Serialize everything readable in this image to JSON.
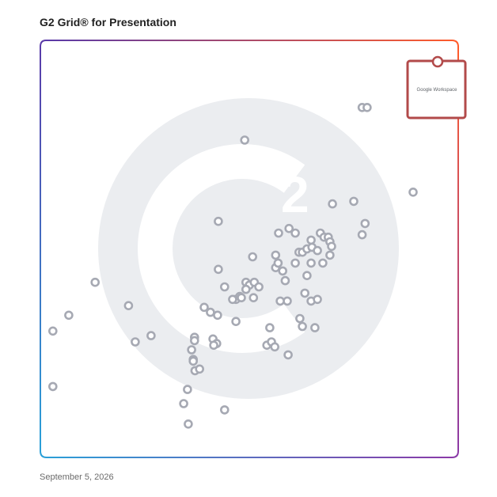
{
  "page": {
    "title": "G2 Grid® for Presentation",
    "date": "September 5, 2026"
  },
  "colors": {
    "dot_stroke": "#a6a9b3",
    "highlight": "#b24a4a",
    "watermark": "#ebedf0",
    "frame_gradient": [
      "#5a3aa8",
      "#ff5c2b",
      "#2aa0d8",
      "#8a3aa8"
    ]
  },
  "chart_data": {
    "type": "scatter",
    "title": "G2 Grid® for Presentation",
    "xlabel": "",
    "ylabel": "",
    "xlim": [
      0,
      100
    ],
    "ylim": [
      0,
      100
    ],
    "quadrant_split": [
      50,
      50
    ],
    "grid": false,
    "watermark": "g2-logo",
    "points": [
      {
        "x": 77.0,
        "y": 83.9
      },
      {
        "x": 78.2,
        "y": 83.9
      },
      {
        "x": 48.9,
        "y": 76.1
      },
      {
        "x": 89.2,
        "y": 63.6
      },
      {
        "x": 75.0,
        "y": 61.4
      },
      {
        "x": 77.7,
        "y": 56.1
      },
      {
        "x": 69.9,
        "y": 60.8
      },
      {
        "x": 77.0,
        "y": 53.4
      },
      {
        "x": 42.6,
        "y": 56.6
      },
      {
        "x": 57.0,
        "y": 53.8
      },
      {
        "x": 59.5,
        "y": 54.9
      },
      {
        "x": 61.0,
        "y": 53.8
      },
      {
        "x": 64.8,
        "y": 52.1
      },
      {
        "x": 67.0,
        "y": 53.8
      },
      {
        "x": 67.9,
        "y": 52.8
      },
      {
        "x": 68.9,
        "y": 52.8
      },
      {
        "x": 69.3,
        "y": 51.7
      },
      {
        "x": 69.7,
        "y": 50.6
      },
      {
        "x": 61.9,
        "y": 49.2
      },
      {
        "x": 62.7,
        "y": 49.2
      },
      {
        "x": 63.8,
        "y": 50.0
      },
      {
        "x": 65.0,
        "y": 50.4
      },
      {
        "x": 66.3,
        "y": 49.6
      },
      {
        "x": 69.3,
        "y": 48.5
      },
      {
        "x": 56.3,
        "y": 48.5
      },
      {
        "x": 50.8,
        "y": 48.1
      },
      {
        "x": 42.6,
        "y": 45.1
      },
      {
        "x": 56.3,
        "y": 45.5
      },
      {
        "x": 56.9,
        "y": 46.6
      },
      {
        "x": 58.0,
        "y": 44.7
      },
      {
        "x": 61.0,
        "y": 46.6
      },
      {
        "x": 64.8,
        "y": 46.6
      },
      {
        "x": 67.6,
        "y": 46.6
      },
      {
        "x": 63.8,
        "y": 43.6
      },
      {
        "x": 58.6,
        "y": 42.4
      },
      {
        "x": 49.2,
        "y": 42.0
      },
      {
        "x": 50.0,
        "y": 41.3
      },
      {
        "x": 51.2,
        "y": 42.0
      },
      {
        "x": 52.3,
        "y": 40.9
      },
      {
        "x": 49.2,
        "y": 40.3
      },
      {
        "x": 44.1,
        "y": 40.9
      },
      {
        "x": 46.8,
        "y": 37.9
      },
      {
        "x": 47.7,
        "y": 38.6
      },
      {
        "x": 48.1,
        "y": 38.3
      },
      {
        "x": 51.0,
        "y": 38.3
      },
      {
        "x": 46.0,
        "y": 37.9
      },
      {
        "x": 59.1,
        "y": 37.5
      },
      {
        "x": 57.4,
        "y": 37.5
      },
      {
        "x": 63.3,
        "y": 39.4
      },
      {
        "x": 64.8,
        "y": 37.5
      },
      {
        "x": 66.3,
        "y": 37.9
      },
      {
        "x": 13.1,
        "y": 42.0
      },
      {
        "x": 21.1,
        "y": 36.4
      },
      {
        "x": 39.2,
        "y": 36.0
      },
      {
        "x": 40.7,
        "y": 34.8
      },
      {
        "x": 42.4,
        "y": 34.1
      },
      {
        "x": 6.8,
        "y": 34.1
      },
      {
        "x": 3.0,
        "y": 30.3
      },
      {
        "x": 46.8,
        "y": 32.6
      },
      {
        "x": 62.1,
        "y": 33.3
      },
      {
        "x": 62.7,
        "y": 31.4
      },
      {
        "x": 65.7,
        "y": 31.1
      },
      {
        "x": 54.9,
        "y": 31.1
      },
      {
        "x": 26.5,
        "y": 29.2
      },
      {
        "x": 22.7,
        "y": 27.7
      },
      {
        "x": 36.9,
        "y": 28.8
      },
      {
        "x": 36.9,
        "y": 28.0
      },
      {
        "x": 41.3,
        "y": 28.4
      },
      {
        "x": 42.2,
        "y": 27.3
      },
      {
        "x": 36.2,
        "y": 25.8
      },
      {
        "x": 36.6,
        "y": 23.5
      },
      {
        "x": 36.6,
        "y": 23.1
      },
      {
        "x": 37.0,
        "y": 20.8
      },
      {
        "x": 38.1,
        "y": 21.2
      },
      {
        "x": 41.5,
        "y": 26.9
      },
      {
        "x": 54.2,
        "y": 26.9
      },
      {
        "x": 55.3,
        "y": 27.7
      },
      {
        "x": 56.1,
        "y": 26.5
      },
      {
        "x": 59.3,
        "y": 24.6
      },
      {
        "x": 3.0,
        "y": 17.0
      },
      {
        "x": 35.2,
        "y": 16.3
      },
      {
        "x": 34.3,
        "y": 12.9
      },
      {
        "x": 44.1,
        "y": 11.4
      },
      {
        "x": 35.4,
        "y": 8.0
      }
    ],
    "highlighted": {
      "label": "Google Workspace",
      "x": 95.0,
      "y": 94.7
    }
  }
}
